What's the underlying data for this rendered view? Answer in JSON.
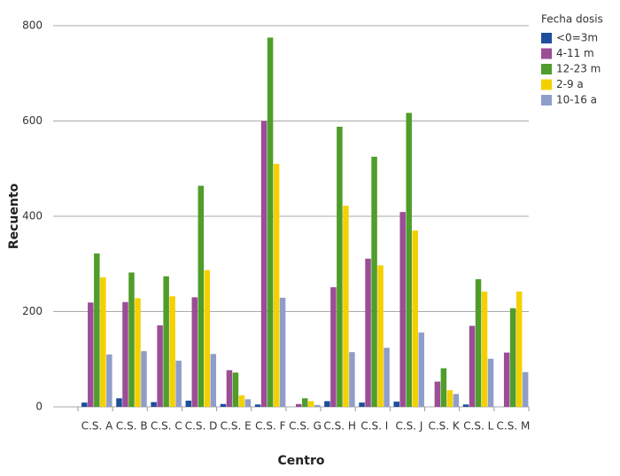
{
  "chart_data": {
    "type": "bar",
    "x_label": "Centro",
    "y_label": "Recuento",
    "legend_title": "Fecha dosis",
    "legend": "right",
    "grid": true,
    "categories": [
      "C.S. A",
      "C.S. B",
      "C.S. C",
      "C.S. D",
      "C.S. E",
      "C.S. F",
      "C.S. G",
      "C.S. H",
      "C.S. I",
      "C.S. J",
      "C.S. K",
      "C.S. L",
      "C.S. M"
    ],
    "series": [
      {
        "name": "<0=3m",
        "color": "#1f4e9c",
        "values": [
          9,
          18,
          10,
          13,
          6,
          5,
          0,
          12,
          9,
          11,
          0,
          5,
          0
        ]
      },
      {
        "name": "4-11 m",
        "color": "#9b4d96",
        "values": [
          219,
          220,
          171,
          230,
          77,
          600,
          6,
          251,
          311,
          409,
          53,
          170,
          114
        ]
      },
      {
        "name": "12-23 m",
        "color": "#4f9d2a",
        "values": [
          322,
          282,
          274,
          464,
          72,
          775,
          18,
          588,
          525,
          617,
          81,
          268,
          207
        ]
      },
      {
        "name": "2-9 a",
        "color": "#f4d000",
        "values": [
          272,
          228,
          232,
          287,
          24,
          510,
          12,
          422,
          297,
          370,
          35,
          242,
          242
        ]
      },
      {
        "name": "10-16 a",
        "color": "#8f9dc9",
        "values": [
          110,
          117,
          97,
          111,
          16,
          229,
          4,
          115,
          124,
          156,
          27,
          101,
          73
        ]
      }
    ],
    "ylim": [
      0,
      800
    ],
    "yticks": [
      0,
      200,
      400,
      600,
      800
    ]
  }
}
